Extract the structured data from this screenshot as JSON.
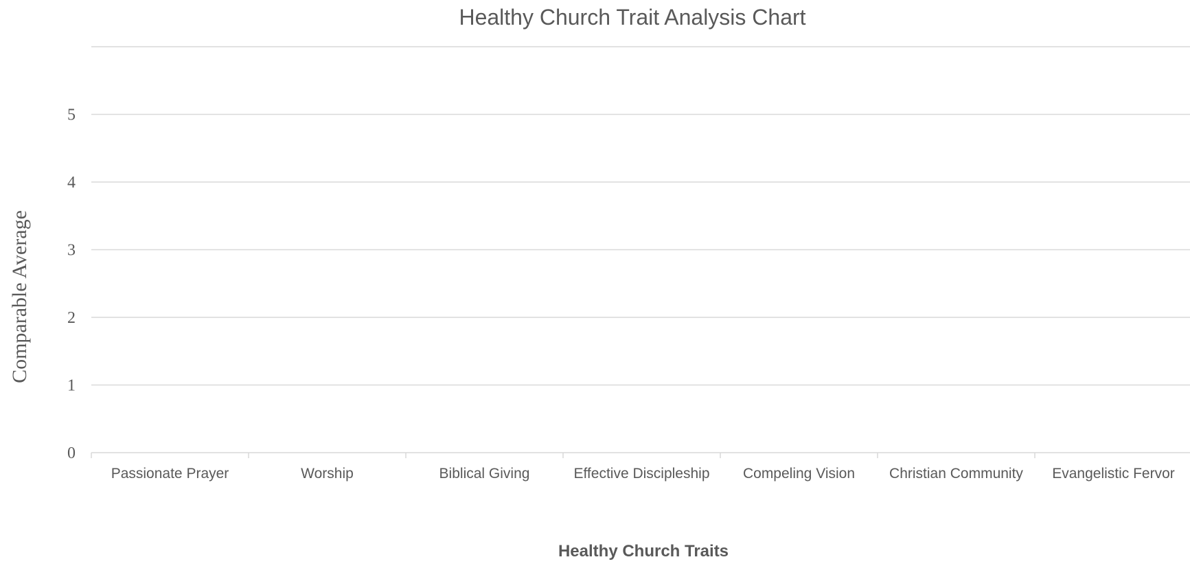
{
  "chart_data": {
    "type": "bar",
    "title": "Healthy Church Trait Analysis Chart",
    "xlabel": "Healthy Church Traits",
    "ylabel": "Comparable Average",
    "categories": [
      "Passionate Prayer",
      "Worship",
      "Biblical Giving",
      "Effective Discipleship",
      "Compeling Vision",
      "Christian Community",
      "Evangelistic Fervor"
    ],
    "yticks": [
      "0",
      "1",
      "2",
      "3",
      "4",
      "5"
    ],
    "ylim": [
      0,
      6
    ],
    "grid": true,
    "series": [],
    "colors": {
      "text": "#595959",
      "grid": "#d9d9d9",
      "background": "#ffffff"
    }
  }
}
